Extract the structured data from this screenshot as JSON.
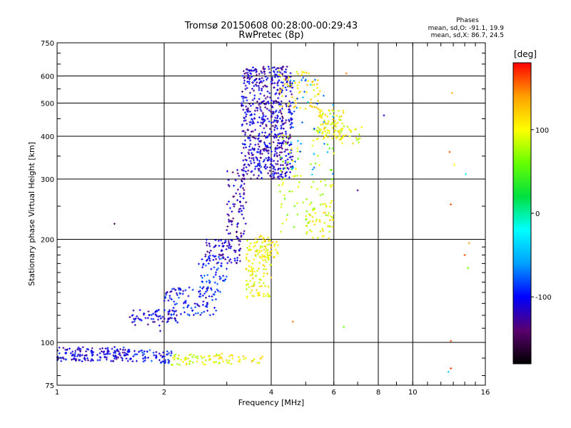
{
  "chart_data": {
    "type": "scatter",
    "title": "Tromsø 20150608 00:28:00-00:29:43",
    "subtitle": "RwPretec (8p)",
    "xlabel": "Frequency [MHz]",
    "ylabel": "Stationary phase Virtual Height [km]",
    "x_scale": "log",
    "y_scale": "log",
    "xlim": [
      1,
      16
    ],
    "ylim": [
      75,
      750
    ],
    "x_ticks": [
      1,
      2,
      4,
      6,
      8,
      10,
      16
    ],
    "y_ticks": [
      75,
      100,
      200,
      300,
      400,
      500,
      600,
      750
    ],
    "grid": true,
    "stats": {
      "heading": "Phases",
      "o_line": "mean, sd,O: -91.1, 19.9",
      "x_line": "mean, sd,X: 86.7, 24.5"
    },
    "colorbar": {
      "label": "[deg]",
      "range": [
        -180,
        180
      ],
      "ticks": [
        100,
        0,
        -100
      ],
      "colors": [
        "#000000",
        "#5a006e",
        "#0000ff",
        "#00a0ff",
        "#00ffff",
        "#00e040",
        "#66ff00",
        "#ffff00",
        "#ffa000",
        "#ff0000"
      ]
    },
    "clusters": [
      {
        "name": "",
        "fmin": 1.0,
        "fmax": 1.6,
        "hmin": 88,
        "hmax": 97,
        "phase": -110,
        "count": 160
      },
      {
        "name": "",
        "fmin": 1.6,
        "fmax": 2.1,
        "hmin": 87,
        "hmax": 95,
        "phase": -100,
        "count": 60
      },
      {
        "name": "",
        "fmin": 2.1,
        "fmax": 3.2,
        "hmin": 86,
        "hmax": 93,
        "phase": 95,
        "count": 70
      },
      {
        "name": "",
        "fmin": 3.2,
        "fmax": 3.8,
        "hmin": 87,
        "hmax": 91,
        "phase": 110,
        "count": 15
      },
      {
        "name": "",
        "fmin": 1.6,
        "fmax": 2.2,
        "hmin": 112,
        "hmax": 125,
        "phase": -110,
        "count": 70
      },
      {
        "name": "",
        "fmin": 2.0,
        "fmax": 2.8,
        "hmin": 120,
        "hmax": 145,
        "phase": -100,
        "count": 100
      },
      {
        "name": "",
        "fmin": 2.5,
        "fmax": 3.0,
        "hmin": 140,
        "hmax": 180,
        "phase": -90,
        "count": 60
      },
      {
        "name": "",
        "fmin": 2.6,
        "fmax": 3.3,
        "hmin": 170,
        "hmax": 200,
        "phase": -115,
        "count": 80
      },
      {
        "name": "",
        "fmin": 3.0,
        "fmax": 3.4,
        "hmin": 200,
        "hmax": 320,
        "phase": -120,
        "count": 80
      },
      {
        "name": "",
        "fmin": 3.3,
        "fmax": 4.6,
        "hmin": 300,
        "hmax": 640,
        "phase": -115,
        "count": 650
      },
      {
        "name": "",
        "fmin": 3.4,
        "fmax": 4.0,
        "hmin": 135,
        "hmax": 200,
        "phase": 100,
        "count": 120
      },
      {
        "name": "",
        "fmin": 3.6,
        "fmax": 4.2,
        "hmin": 175,
        "hmax": 205,
        "phase": 110,
        "count": 40
      },
      {
        "name": "",
        "fmin": 4.2,
        "fmax": 5.5,
        "hmin": 480,
        "hmax": 630,
        "phase": 110,
        "count": 70
      },
      {
        "name": "",
        "fmin": 5.4,
        "fmax": 6.4,
        "hmin": 390,
        "hmax": 480,
        "phase": 100,
        "count": 90
      },
      {
        "name": "",
        "fmin": 6.2,
        "fmax": 7.2,
        "hmin": 380,
        "hmax": 430,
        "phase": 95,
        "count": 25
      },
      {
        "name": "",
        "fmin": 5.0,
        "fmax": 6.0,
        "hmin": 200,
        "hmax": 260,
        "phase": 100,
        "count": 50
      },
      {
        "name": "",
        "fmin": 4.2,
        "fmax": 6.0,
        "hmin": 210,
        "hmax": 420,
        "phase": 80,
        "count": 90
      },
      {
        "name": "",
        "fmin": 4.5,
        "fmax": 6.0,
        "hmin": 300,
        "hmax": 600,
        "phase": -60,
        "count": 40
      }
    ],
    "points": [
      {
        "x": 1.45,
        "y": 222,
        "phase": -150
      },
      {
        "x": 8.3,
        "y": 460,
        "phase": -110
      },
      {
        "x": 12.9,
        "y": 535,
        "phase": 130
      },
      {
        "x": 12.7,
        "y": 360,
        "phase": 160
      },
      {
        "x": 13.1,
        "y": 330,
        "phase": 100
      },
      {
        "x": 14.1,
        "y": 310,
        "phase": -20
      },
      {
        "x": 12.8,
        "y": 253,
        "phase": 160
      },
      {
        "x": 14.0,
        "y": 180,
        "phase": 160
      },
      {
        "x": 14.4,
        "y": 195,
        "phase": 140
      },
      {
        "x": 14.3,
        "y": 165,
        "phase": 60
      },
      {
        "x": 12.8,
        "y": 101,
        "phase": 160
      },
      {
        "x": 12.8,
        "y": 84,
        "phase": 170
      },
      {
        "x": 12.6,
        "y": 82,
        "phase": -40
      },
      {
        "x": 7.0,
        "y": 278,
        "phase": -130
      },
      {
        "x": 4.6,
        "y": 115,
        "phase": 150
      },
      {
        "x": 6.4,
        "y": 111,
        "phase": 60
      },
      {
        "x": 6.5,
        "y": 610,
        "phase": 150
      },
      {
        "x": 1.95,
        "y": 108,
        "phase": -120
      }
    ]
  }
}
